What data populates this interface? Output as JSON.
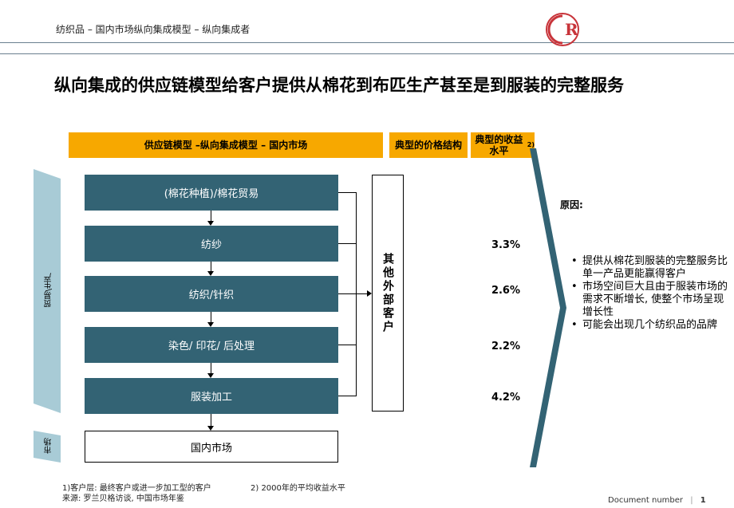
{
  "header": {
    "breadcrumb": "纺织品 – 国内市场纵向集成模型 – 纵向集成者"
  },
  "logo": {
    "text": "R"
  },
  "title": "纵向集成的供应链模型给客户提供从棉花到布匹生产甚至是到服装的完整服务",
  "columns": {
    "model": "供应链模型 –纵向集成模型 – 国内市场",
    "price": "典型的价格结构",
    "margin": "典型的收益水平",
    "margin_sup": "2)"
  },
  "side_labels": {
    "trade": "贸易\\生产",
    "market": "市场"
  },
  "steps": [
    {
      "label": "(棉花种植)/棉花贸易",
      "margin": ""
    },
    {
      "label": "纺纱",
      "margin": "3.3%"
    },
    {
      "label": "纺织/针织",
      "margin": "2.6%"
    },
    {
      "label": "染色/ 印花/ 后处理",
      "margin": "2.2%"
    },
    {
      "label": "服装加工",
      "margin": "4.2%"
    }
  ],
  "domestic_market": "国内市场",
  "other_customers": "其他外部客户",
  "reasons": {
    "label": "原因:",
    "items": [
      "提供从棉花到服装的完整服务比单一产品更能赢得客户",
      "市场空间巨大且由于服装市场的需求不断增长, 使整个市场呈现增长性",
      "可能会出现几个纺织品的品牌"
    ]
  },
  "footnotes": {
    "note1": "1)客户层: 最终客户或进一步加工型的客户",
    "note2": "2) 2000年的平均收益水平",
    "source": "来源: 罗兰贝格访谈, 中国市场年鉴"
  },
  "footer": {
    "doc_label": "Document number",
    "page": "1"
  },
  "colors": {
    "accent": "#f7a800",
    "process": "#336374",
    "side": "#a8cbd6"
  }
}
